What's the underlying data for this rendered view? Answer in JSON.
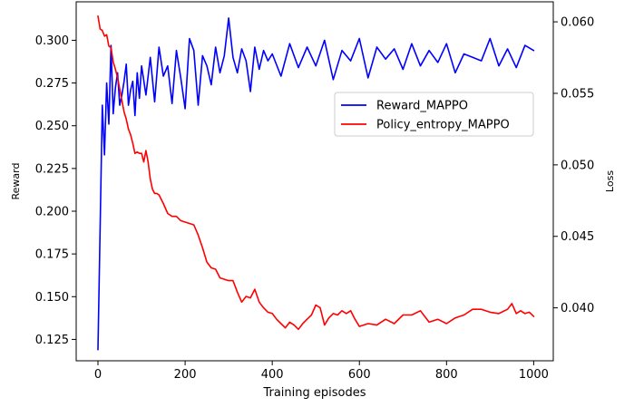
{
  "chart_data": {
    "type": "line",
    "xlabel": "Training episodes",
    "ylabel": "Reward",
    "y2label": "Loss",
    "xlim": [
      -50,
      1045
    ],
    "ylim": [
      0.1125,
      0.3225
    ],
    "y2lim": [
      0.0363,
      0.0614
    ],
    "xticks": [
      0,
      200,
      400,
      600,
      800,
      1000
    ],
    "yticks": [
      0.125,
      0.15,
      0.175,
      0.2,
      0.225,
      0.25,
      0.275,
      0.3
    ],
    "ytick_labels": [
      "0.125",
      "0.150",
      "0.175",
      "0.200",
      "0.225",
      "0.250",
      "0.275",
      "0.300"
    ],
    "y2ticks": [
      0.04,
      0.045,
      0.05,
      0.055,
      0.06
    ],
    "y2tick_labels": [
      "0.040",
      "0.045",
      "0.050",
      "0.055",
      "0.060"
    ],
    "grid": false,
    "legend_position": "upper-right",
    "series": [
      {
        "name": "Reward_MAPPO",
        "axis": "left",
        "color": "#0000ff",
        "x": [
          0,
          10,
          15,
          20,
          25,
          30,
          35,
          40,
          45,
          50,
          55,
          60,
          65,
          70,
          75,
          80,
          85,
          90,
          95,
          100,
          110,
          120,
          130,
          140,
          150,
          160,
          170,
          180,
          190,
          200,
          210,
          220,
          230,
          240,
          250,
          260,
          270,
          280,
          290,
          300,
          310,
          320,
          330,
          340,
          350,
          360,
          370,
          380,
          390,
          400,
          420,
          440,
          460,
          480,
          500,
          520,
          540,
          560,
          580,
          600,
          620,
          640,
          660,
          680,
          700,
          720,
          740,
          760,
          780,
          800,
          820,
          840,
          860,
          880,
          900,
          920,
          940,
          960,
          980,
          1000
        ],
        "y": [
          0.119,
          0.262,
          0.233,
          0.275,
          0.251,
          0.297,
          0.257,
          0.272,
          0.281,
          0.262,
          0.268,
          0.276,
          0.286,
          0.262,
          0.271,
          0.276,
          0.256,
          0.281,
          0.266,
          0.285,
          0.268,
          0.29,
          0.264,
          0.296,
          0.279,
          0.285,
          0.263,
          0.294,
          0.278,
          0.26,
          0.301,
          0.294,
          0.262,
          0.291,
          0.285,
          0.274,
          0.296,
          0.281,
          0.291,
          0.313,
          0.29,
          0.281,
          0.295,
          0.288,
          0.27,
          0.296,
          0.283,
          0.294,
          0.288,
          0.292,
          0.279,
          0.298,
          0.284,
          0.296,
          0.285,
          0.3,
          0.277,
          0.294,
          0.288,
          0.301,
          0.278,
          0.296,
          0.289,
          0.295,
          0.283,
          0.298,
          0.285,
          0.294,
          0.287,
          0.298,
          0.281,
          0.292,
          0.29,
          0.288,
          0.301,
          0.285,
          0.295,
          0.284,
          0.297,
          0.294
        ]
      },
      {
        "name": "Policy_entropy_MAPPO",
        "axis": "right",
        "color": "#ff0000",
        "x": [
          0,
          5,
          10,
          15,
          20,
          25,
          30,
          35,
          40,
          45,
          50,
          55,
          60,
          65,
          70,
          75,
          80,
          85,
          90,
          95,
          100,
          105,
          110,
          115,
          120,
          125,
          130,
          135,
          140,
          150,
          160,
          170,
          180,
          190,
          200,
          210,
          220,
          230,
          240,
          250,
          260,
          270,
          280,
          290,
          300,
          310,
          320,
          330,
          340,
          350,
          360,
          370,
          380,
          390,
          400,
          410,
          420,
          430,
          440,
          450,
          460,
          470,
          480,
          490,
          500,
          510,
          520,
          530,
          540,
          550,
          560,
          570,
          580,
          590,
          600,
          620,
          640,
          660,
          680,
          700,
          720,
          740,
          760,
          780,
          800,
          820,
          840,
          860,
          880,
          900,
          920,
          940,
          950,
          960,
          970,
          980,
          990,
          1000
        ],
        "y": [
          0.0604,
          0.0595,
          0.0594,
          0.059,
          0.0591,
          0.0583,
          0.0582,
          0.0572,
          0.0567,
          0.0561,
          0.0553,
          0.0545,
          0.0537,
          0.0532,
          0.0525,
          0.0521,
          0.0515,
          0.0508,
          0.0509,
          0.0508,
          0.0508,
          0.0502,
          0.051,
          0.0502,
          0.049,
          0.0483,
          0.048,
          0.048,
          0.0479,
          0.0473,
          0.0466,
          0.0464,
          0.0464,
          0.0461,
          0.046,
          0.0459,
          0.0458,
          0.0451,
          0.0442,
          0.0432,
          0.0428,
          0.0427,
          0.0421,
          0.042,
          0.0419,
          0.0419,
          0.0411,
          0.0404,
          0.0408,
          0.0407,
          0.0413,
          0.0404,
          0.04,
          0.0397,
          0.0396,
          0.0392,
          0.0389,
          0.0386,
          0.039,
          0.0388,
          0.0385,
          0.0389,
          0.0392,
          0.0395,
          0.0402,
          0.04,
          0.0388,
          0.0393,
          0.0396,
          0.0395,
          0.0398,
          0.0396,
          0.0398,
          0.0392,
          0.0387,
          0.0389,
          0.0388,
          0.0392,
          0.0389,
          0.0395,
          0.0395,
          0.0398,
          0.039,
          0.0392,
          0.0389,
          0.0393,
          0.0395,
          0.0399,
          0.0399,
          0.0397,
          0.0396,
          0.0399,
          0.0403,
          0.0396,
          0.0398,
          0.0396,
          0.0397,
          0.0394
        ]
      }
    ]
  }
}
